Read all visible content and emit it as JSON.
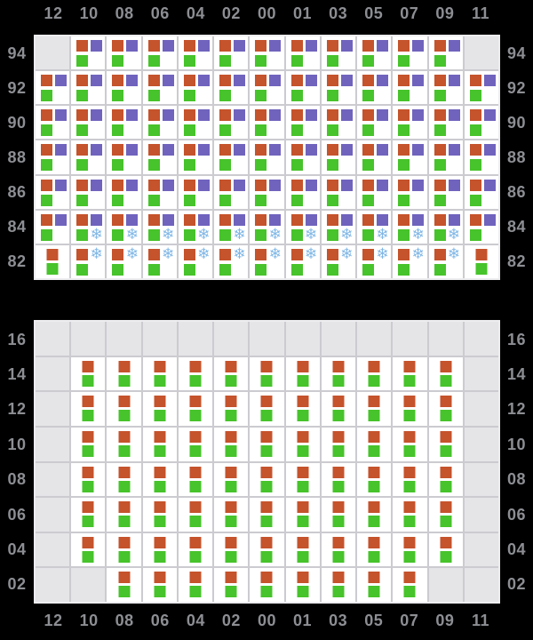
{
  "columns": [
    "12",
    "10",
    "08",
    "06",
    "04",
    "02",
    "00",
    "01",
    "03",
    "05",
    "07",
    "09",
    "11"
  ],
  "palette": {
    "orange_square": "#c5532c",
    "purple_square": "#7063bd",
    "green_square": "#47c32b",
    "snowflake_blue": "#80b7e6",
    "cell_bg": "#ffffff",
    "empty_cell": "#e5e5e8",
    "grid_line": "#cbcbd0",
    "label_text": "#8c8e93",
    "page_bg": "#000000"
  },
  "icons": {
    "snowflake": "❄"
  },
  "cell_types": {
    "opg": {
      "tl": "orange",
      "tr": "purple",
      "bl": "green"
    },
    "opgs": {
      "tl": "orange",
      "tr": "purple",
      "bl": "green",
      "br": "snowflake"
    },
    "osg": {
      "tl": "orange",
      "tr": "snowflake",
      "bl": "green"
    },
    "og": {
      "stack": [
        "orange",
        "green"
      ]
    },
    "empty": {}
  },
  "top_panel": {
    "row_labels": [
      "94",
      "92",
      "90",
      "88",
      "86",
      "84",
      "82"
    ],
    "rows": [
      [
        "empty",
        "opg",
        "opg",
        "opg",
        "opg",
        "opg",
        "opg",
        "opg",
        "opg",
        "opg",
        "opg",
        "opg",
        "empty"
      ],
      [
        "opg",
        "opg",
        "opg",
        "opg",
        "opg",
        "opg",
        "opg",
        "opg",
        "opg",
        "opg",
        "opg",
        "opg",
        "opg"
      ],
      [
        "opg",
        "opg",
        "opg",
        "opg",
        "opg",
        "opg",
        "opg",
        "opg",
        "opg",
        "opg",
        "opg",
        "opg",
        "opg"
      ],
      [
        "opg",
        "opg",
        "opg",
        "opg",
        "opg",
        "opg",
        "opg",
        "opg",
        "opg",
        "opg",
        "opg",
        "opg",
        "opg"
      ],
      [
        "opg",
        "opg",
        "opg",
        "opg",
        "opg",
        "opg",
        "opg",
        "opg",
        "opg",
        "opg",
        "opg",
        "opg",
        "opg"
      ],
      [
        "opg",
        "opgs",
        "opgs",
        "opgs",
        "opgs",
        "opgs",
        "opgs",
        "opgs",
        "opgs",
        "opgs",
        "opgs",
        "opgs",
        "opg"
      ],
      [
        "og",
        "osg",
        "osg",
        "osg",
        "osg",
        "osg",
        "osg",
        "osg",
        "osg",
        "osg",
        "osg",
        "osg",
        "og"
      ]
    ]
  },
  "bottom_panel": {
    "row_labels": [
      "16",
      "14",
      "12",
      "10",
      "08",
      "06",
      "04",
      "02"
    ],
    "rows": [
      [
        "empty",
        "empty",
        "empty",
        "empty",
        "empty",
        "empty",
        "empty",
        "empty",
        "empty",
        "empty",
        "empty",
        "empty",
        "empty"
      ],
      [
        "empty",
        "og",
        "og",
        "og",
        "og",
        "og",
        "og",
        "og",
        "og",
        "og",
        "og",
        "og",
        "empty"
      ],
      [
        "empty",
        "og",
        "og",
        "og",
        "og",
        "og",
        "og",
        "og",
        "og",
        "og",
        "og",
        "og",
        "empty"
      ],
      [
        "empty",
        "og",
        "og",
        "og",
        "og",
        "og",
        "og",
        "og",
        "og",
        "og",
        "og",
        "og",
        "empty"
      ],
      [
        "empty",
        "og",
        "og",
        "og",
        "og",
        "og",
        "og",
        "og",
        "og",
        "og",
        "og",
        "og",
        "empty"
      ],
      [
        "empty",
        "og",
        "og",
        "og",
        "og",
        "og",
        "og",
        "og",
        "og",
        "og",
        "og",
        "og",
        "empty"
      ],
      [
        "empty",
        "og",
        "og",
        "og",
        "og",
        "og",
        "og",
        "og",
        "og",
        "og",
        "og",
        "og",
        "empty"
      ],
      [
        "empty",
        "empty",
        "og",
        "og",
        "og",
        "og",
        "og",
        "og",
        "og",
        "og",
        "og",
        "empty",
        "empty"
      ]
    ]
  }
}
